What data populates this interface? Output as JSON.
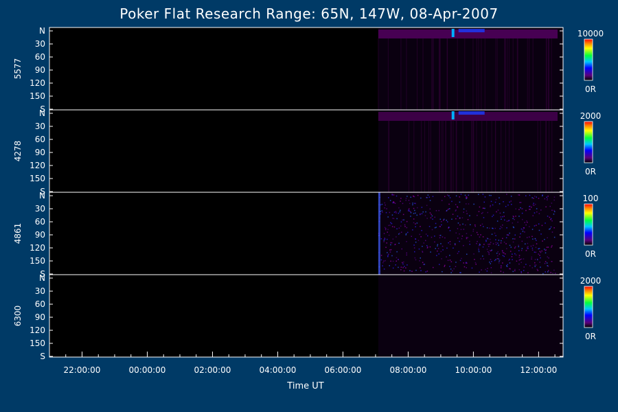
{
  "chart_data": {
    "type": "heatmap",
    "title": "Poker Flat Research Range: 65N, 147W, 08-Apr-2007",
    "xlabel": "Time UT",
    "x_ticks": [
      "22:00:00",
      "00:00:00",
      "02:00:00",
      "04:00:00",
      "06:00:00",
      "08:00:00",
      "10:00:00",
      "12:00:00"
    ],
    "y_ticks": [
      "N",
      "30",
      "60",
      "90",
      "120",
      "150",
      "S"
    ],
    "panels": [
      {
        "name": "5577",
        "colorbar_max": "10000",
        "colorbar_min": "0R",
        "intensity": 0.55,
        "data_start": "07:05",
        "burst_time": "09:20",
        "band": "top"
      },
      {
        "name": "4278",
        "colorbar_max": "2000",
        "colorbar_min": "0R",
        "intensity": 0.45,
        "data_start": "07:05",
        "burst_time": "09:20",
        "band": "top"
      },
      {
        "name": "4861",
        "colorbar_max": "100",
        "colorbar_min": "0R",
        "intensity": 0.7,
        "data_start": "07:05",
        "burst_time": "",
        "band": "noise"
      },
      {
        "name": "6300",
        "colorbar_max": "2000",
        "colorbar_min": "0R",
        "intensity": 0.1,
        "data_start": "07:05",
        "burst_time": "",
        "band": "faint"
      }
    ],
    "colors": {
      "background": "#003a66",
      "plot": "#000000",
      "axis": "#ffffff"
    }
  }
}
